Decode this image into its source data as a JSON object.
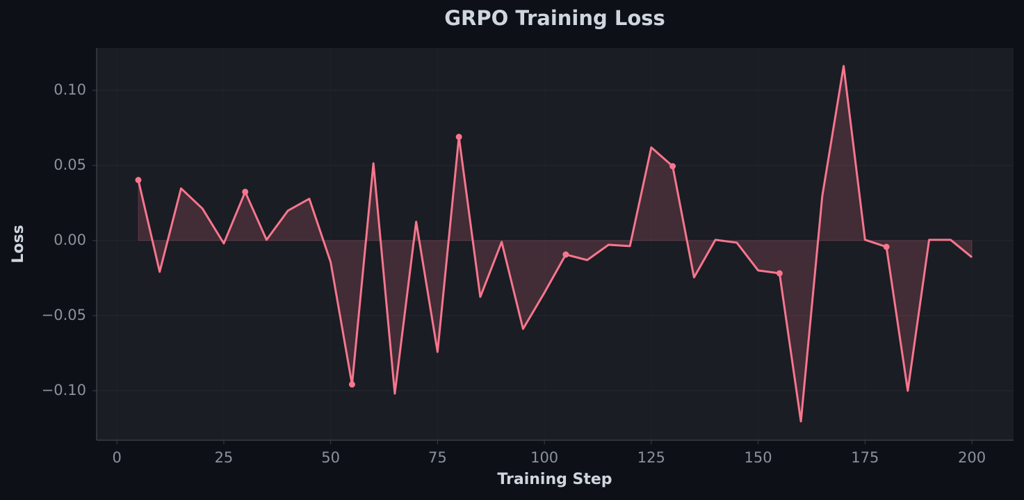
{
  "chart_data": {
    "type": "line",
    "title": "GRPO Training Loss",
    "x_label": "Training Step",
    "y_label": "Loss",
    "x": [
      5,
      10,
      15,
      20,
      25,
      30,
      35,
      40,
      45,
      50,
      55,
      60,
      65,
      70,
      75,
      80,
      85,
      90,
      95,
      100,
      105,
      110,
      115,
      120,
      125,
      130,
      135,
      140,
      145,
      150,
      155,
      160,
      165,
      170,
      175,
      180,
      185,
      190,
      195,
      200
    ],
    "series": [
      {
        "color": "#f7768e",
        "values": [
          0.0403,
          -0.0208,
          0.0347,
          0.0213,
          -0.0019,
          0.0324,
          0.0005,
          0.0199,
          0.0278,
          -0.0144,
          -0.0958,
          0.0514,
          -0.1019,
          0.0125,
          -0.0741,
          0.069,
          -0.0375,
          -0.0009,
          -0.0588,
          -0.0347,
          -0.0093,
          -0.013,
          -0.0028,
          -0.0037,
          0.062,
          0.0495,
          -0.0245,
          0.0005,
          -0.0014,
          -0.0199,
          -0.0218,
          -0.1204,
          0.0296,
          0.1162,
          0.0005,
          -0.0042,
          -0.1,
          0.0005,
          0.0005,
          -0.0111
        ]
      }
    ],
    "marker_every": 5,
    "fill_to_zero": true,
    "xlim": [
      -4.75,
      209.75
    ],
    "xticks": [
      0,
      25,
      50,
      75,
      100,
      125,
      150,
      175,
      200
    ],
    "ylim": [
      -0.1329,
      0.1282
    ],
    "yticks": [
      {
        "value": -0.1,
        "label": "−0.10"
      },
      {
        "value": -0.05,
        "label": "−0.05"
      },
      {
        "value": 0,
        "label": "0.00"
      },
      {
        "value": 0.05,
        "label": "0.05"
      },
      {
        "value": 0.1,
        "label": "0.10"
      }
    ],
    "grid": true
  }
}
